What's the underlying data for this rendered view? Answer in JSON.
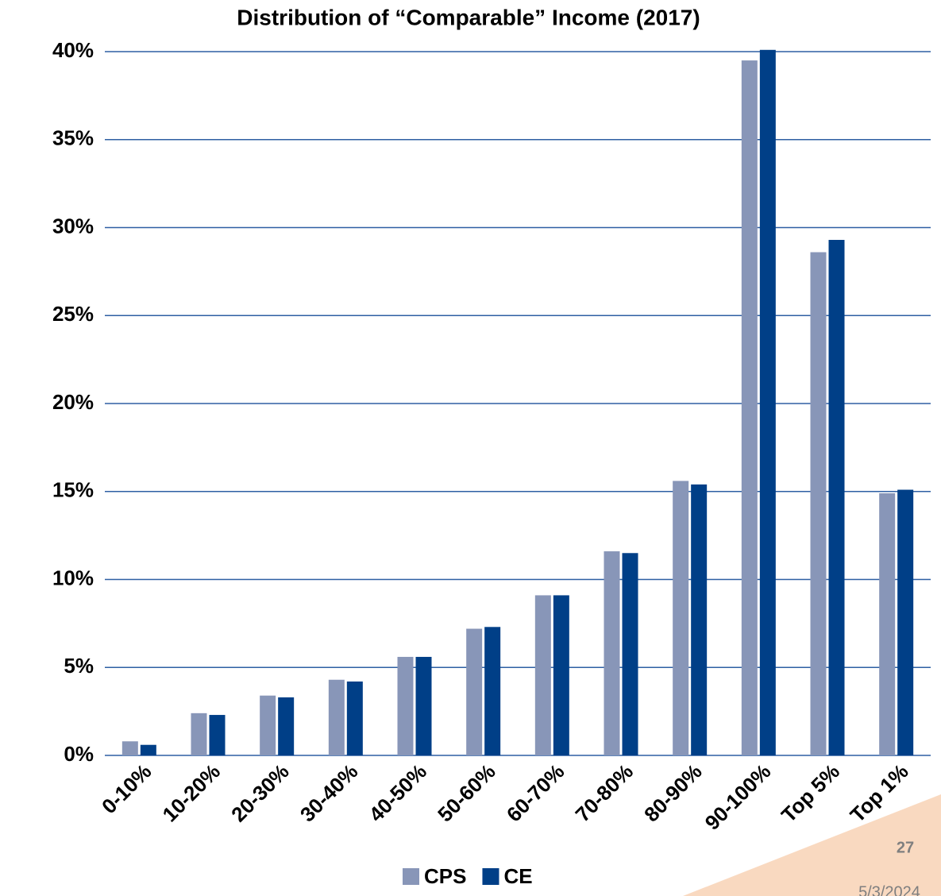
{
  "chart_data": {
    "type": "bar",
    "title": "Distribution of “Comparable” Income (2017)",
    "categories": [
      "0-10%",
      "10-20%",
      "20-30%",
      "30-40%",
      "40-50%",
      "50-60%",
      "60-70%",
      "70-80%",
      "80-90%",
      "90-100%",
      "Top 5%",
      "Top 1%"
    ],
    "series": [
      {
        "name": "CPS",
        "color": "#8896b8",
        "values": [
          0.8,
          2.4,
          3.4,
          4.3,
          5.6,
          7.2,
          9.1,
          11.6,
          15.6,
          39.5,
          28.6,
          14.9
        ]
      },
      {
        "name": "CE",
        "color": "#003f87",
        "values": [
          0.6,
          2.3,
          3.3,
          4.2,
          5.6,
          7.3,
          9.1,
          11.5,
          15.4,
          40.1,
          29.3,
          15.1
        ]
      }
    ],
    "ylim": [
      0,
      40
    ],
    "yticks": [
      {
        "value": 0,
        "label": "0%"
      },
      {
        "value": 5,
        "label": "5%"
      },
      {
        "value": 10,
        "label": "10%"
      },
      {
        "value": 15,
        "label": "15%"
      },
      {
        "value": 20,
        "label": "20%"
      },
      {
        "value": 25,
        "label": "25%"
      },
      {
        "value": 30,
        "label": "30%"
      },
      {
        "value": 35,
        "label": "35%"
      },
      {
        "value": 40,
        "label": "40%"
      }
    ],
    "grid": true,
    "grid_color": "#2e5fa3",
    "legend": "bottom"
  },
  "slide": {
    "page_number": "27",
    "date": "5/3/2024"
  }
}
